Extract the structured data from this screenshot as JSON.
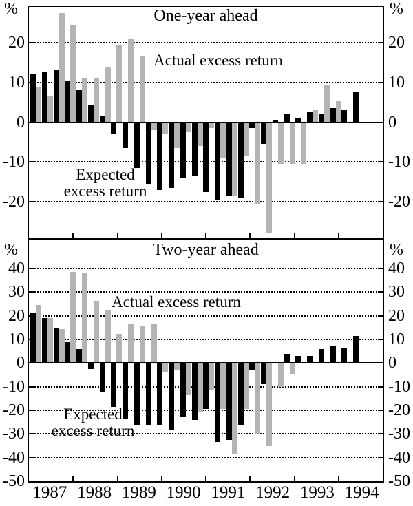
{
  "chart_data": [
    {
      "type": "bar",
      "panel": "top",
      "title": "One-year ahead",
      "ylabel_unit": "%",
      "x_tick_years": [
        "1987",
        "1988",
        "1989",
        "1990",
        "1991",
        "1992",
        "1993",
        "1994"
      ],
      "x_frequency": "quarterly",
      "x_start": "1987Q1",
      "yticks": [
        20,
        10,
        0,
        -10,
        -20
      ],
      "ylim": [
        -29,
        29
      ],
      "grid": "dotted horizontal lines at labeled ticks, solid line at zero",
      "legend_position": "text annotations inside plot",
      "annotations": {
        "actual": "Actual excess return",
        "expected": [
          "Expected",
          "excess return"
        ]
      },
      "series": [
        {
          "name": "Expected excess return",
          "color": "#000000",
          "values": [
            12,
            12.5,
            13,
            10.5,
            8,
            4.5,
            1.5,
            -3,
            -6.5,
            -11.5,
            -15.5,
            -17,
            -16.5,
            -14,
            -13.5,
            -17.5,
            -19.5,
            -18.5,
            -19,
            -1.5,
            -5.5,
            0.5,
            2,
            1,
            2.5,
            2,
            3.5,
            3,
            7.5
          ]
        },
        {
          "name": "Actual excess return",
          "color": "#b4b4b4",
          "values": [
            9,
            6.5,
            27.5,
            24.5,
            11,
            11,
            14,
            19.5,
            21,
            16.5,
            -2,
            -3,
            -6.5,
            -2.5,
            -6,
            -1.5,
            -9,
            -18.5,
            -8.5,
            -20.5,
            -28,
            -10.5,
            -10.5,
            -10.5,
            3,
            9.5,
            5.5,
            null,
            null
          ]
        }
      ]
    },
    {
      "type": "bar",
      "panel": "bottom",
      "title": "Two-year ahead",
      "ylabel_unit": "%",
      "x_tick_years": [
        "1987",
        "1988",
        "1989",
        "1990",
        "1991",
        "1992",
        "1993",
        "1994"
      ],
      "x_frequency": "quarterly",
      "x_start": "1987Q1",
      "yticks": [
        40,
        30,
        20,
        10,
        0,
        -10,
        -20,
        -30,
        -40,
        -50
      ],
      "ylim": [
        -50,
        52
      ],
      "grid": "dotted horizontal lines at labeled ticks, solid line at zero",
      "legend_position": "text annotations inside plot",
      "annotations": {
        "actual": "Actual excess return",
        "expected": [
          "Expected",
          "excess return"
        ]
      },
      "series": [
        {
          "name": "Expected excess return",
          "color": "#000000",
          "values": [
            21,
            19,
            15,
            9,
            6,
            -2.5,
            -12,
            -18.5,
            -23.5,
            -26,
            -26.5,
            -26,
            -28,
            -23,
            -24,
            -19.5,
            -33.5,
            -32.5,
            -26.5,
            -3,
            -9,
            0.5,
            4,
            3,
            3,
            6,
            7,
            6.5,
            11.5
          ]
        },
        {
          "name": "Actual excess return",
          "color": "#b4b4b4",
          "values": [
            24.5,
            19,
            14.5,
            38.5,
            38,
            26.5,
            22.5,
            12.5,
            16.5,
            15.5,
            16.5,
            -4,
            -3,
            -13.5,
            -20.5,
            -11.5,
            -19.5,
            -38.5,
            -19.5,
            -30,
            -35,
            -10,
            -4.5,
            null,
            null,
            null,
            null,
            null,
            null
          ]
        }
      ]
    }
  ]
}
